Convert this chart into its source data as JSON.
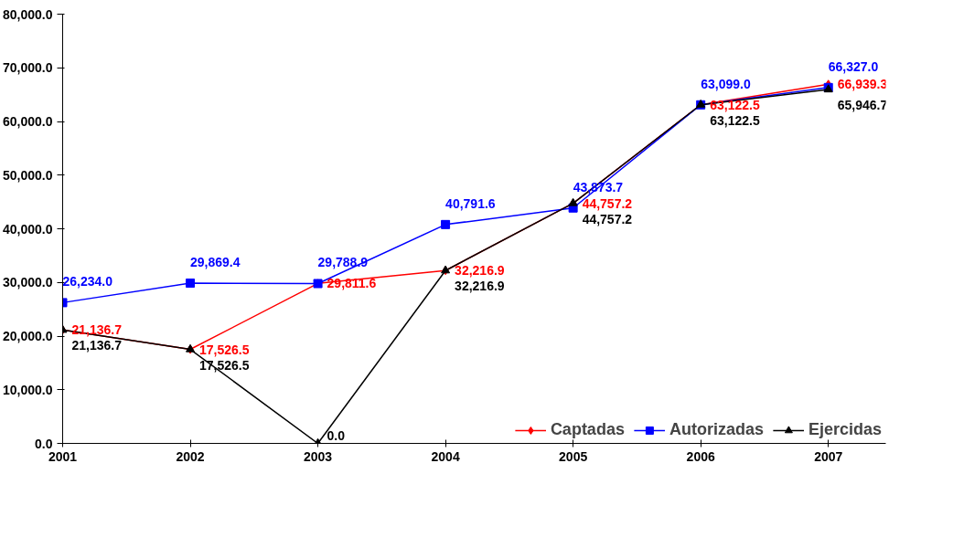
{
  "chart_data": {
    "type": "line",
    "categories": [
      "2001",
      "2002",
      "2003",
      "2004",
      "2005",
      "2006",
      "2007"
    ],
    "ylim": [
      0,
      80000
    ],
    "yticks": [
      {
        "value": 0,
        "label": "0.0"
      },
      {
        "value": 10000,
        "label": "10,000.0"
      },
      {
        "value": 20000,
        "label": "20,000.0"
      },
      {
        "value": 30000,
        "label": "30,000.0"
      },
      {
        "value": 40000,
        "label": "40,000.0"
      },
      {
        "value": 50000,
        "label": "50,000.0"
      },
      {
        "value": 60000,
        "label": "60,000.0"
      },
      {
        "value": 70000,
        "label": "70,000.0"
      },
      {
        "value": 80000,
        "label": "80,000.0"
      }
    ],
    "grid": false,
    "legend": "bottom",
    "series": [
      {
        "name": "Captadas",
        "color": "#ff0000",
        "marker": "diamond",
        "values": [
          21136.7,
          17526.5,
          29811.6,
          32216.9,
          44757.2,
          63122.5,
          66939.3
        ],
        "value_labels": [
          "21,136.7",
          "17,526.5",
          "29,811.6",
          "32,216.9",
          "44,757.2",
          "63,122.5",
          "66,939.3"
        ]
      },
      {
        "name": "Autorizadas",
        "color": "#0000ff",
        "marker": "square",
        "values": [
          26234.0,
          29869.4,
          29788.9,
          40791.6,
          43873.7,
          63099.0,
          66327.0
        ],
        "value_labels": [
          "26,234.0",
          "29,869.4",
          "29,788.9",
          "40,791.6",
          "43,873.7",
          "63,099.0",
          "66,327.0"
        ]
      },
      {
        "name": "Ejercidas",
        "color": "#000000",
        "marker": "triangle",
        "values": [
          21136.7,
          17526.5,
          0.0,
          32216.9,
          44757.2,
          63122.5,
          65946.7
        ],
        "value_labels": [
          "21,136.7",
          "17,526.5",
          "0.0",
          "32,216.9",
          "44,757.2",
          "63,122.5",
          "65,946.7"
        ]
      }
    ]
  }
}
